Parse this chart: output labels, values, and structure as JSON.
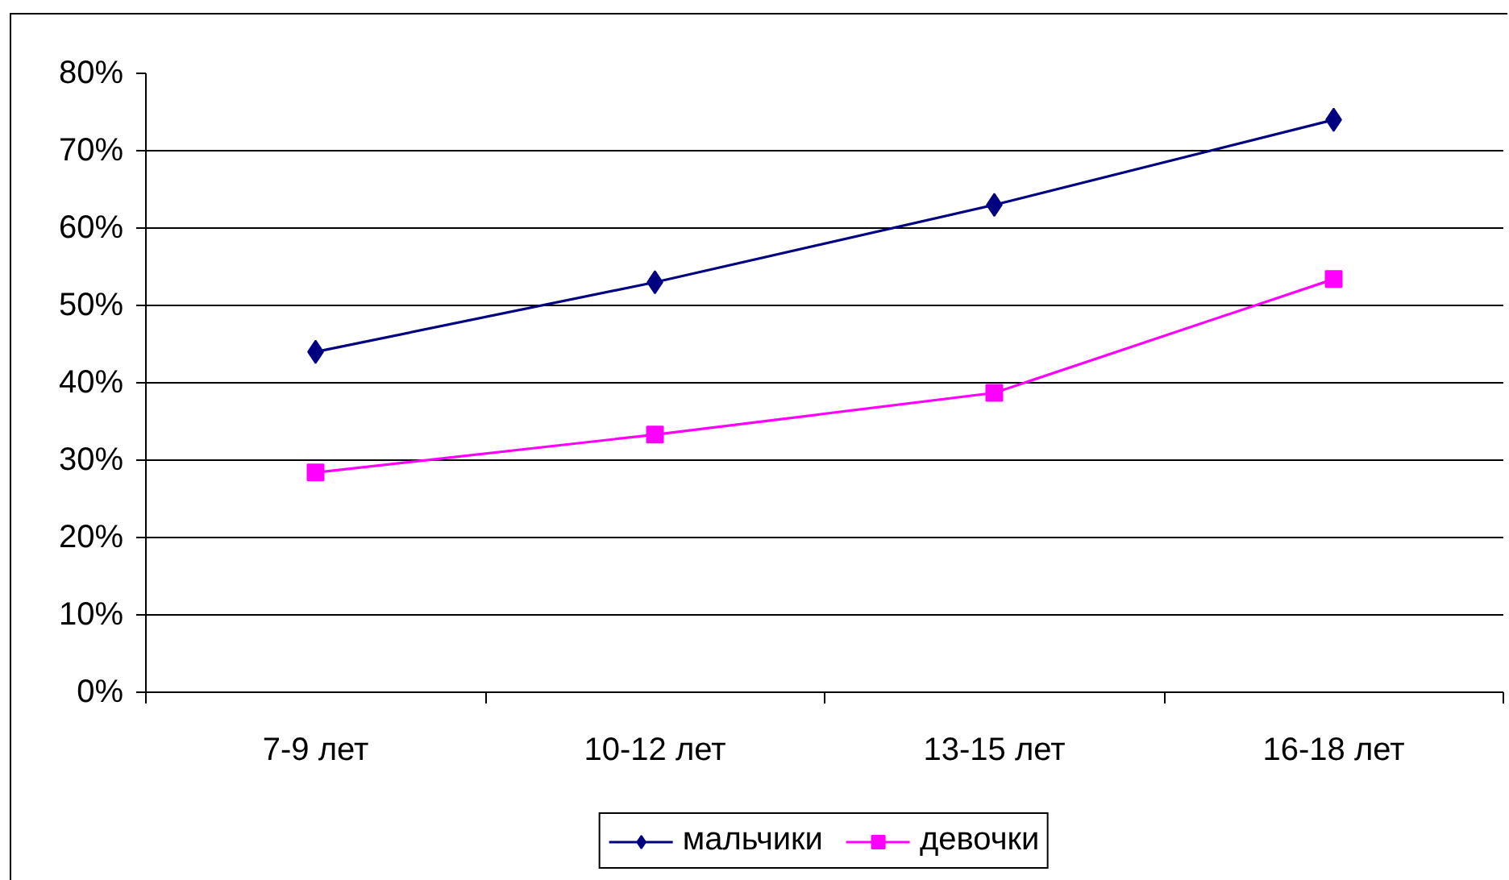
{
  "chart_data": {
    "type": "line",
    "categories": [
      "7-9 лет",
      "10-12 лет",
      "13-15 лет",
      "16-18 лет"
    ],
    "series": [
      {
        "name": "мальчики",
        "color": "#000080",
        "marker": "diamond",
        "values": [
          44,
          53,
          63,
          74
        ]
      },
      {
        "name": "девочки",
        "color": "#ff00ff",
        "marker": "square",
        "values": [
          28.4,
          33.3,
          38.7,
          53.4
        ]
      }
    ],
    "ylim": [
      0,
      80
    ],
    "yticks": [
      {
        "value": 0,
        "label": "0%"
      },
      {
        "value": 10,
        "label": "10%"
      },
      {
        "value": 20,
        "label": "20%"
      },
      {
        "value": 30,
        "label": "30%"
      },
      {
        "value": 40,
        "label": "40%"
      },
      {
        "value": 50,
        "label": "50%"
      },
      {
        "value": 60,
        "label": "60%"
      },
      {
        "value": 70,
        "label": "70%"
      },
      {
        "value": 80,
        "label": "80%"
      }
    ],
    "grid": "y",
    "legend": "bottom"
  }
}
